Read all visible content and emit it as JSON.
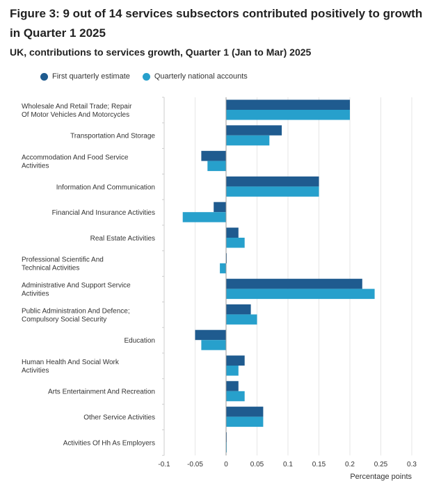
{
  "title": "Figure 3: 9 out of 14 services subsectors contributed positively to growth in Quarter 1 2025",
  "subtitle": "UK, contributions to services growth, Quarter 1 (Jan to Mar) 2025",
  "chart_data": {
    "type": "bar",
    "orientation": "horizontal",
    "categories": [
      "Wholesale And Retail Trade; Repair Of Motor Vehicles And Motorcycles",
      "Transportation And Storage",
      "Accommodation And Food Service Activities",
      "Information And Communication",
      "Financial And Insurance Activities",
      "Real Estate Activities",
      "Professional Scientific And Technical Activities",
      "Administrative And Support Service Activities",
      "Public Administration And Defence; Compulsory Social Security",
      "Education",
      "Human Health And Social Work Activities",
      "Arts Entertainment And Recreation",
      "Other Service Activities",
      "Activities Of Hh As Employers"
    ],
    "series": [
      {
        "name": "First quarterly estimate",
        "color": "#1f5b8f",
        "values": [
          0.2,
          0.09,
          -0.04,
          0.15,
          -0.02,
          0.02,
          0.0,
          0.22,
          0.04,
          -0.05,
          0.03,
          0.02,
          0.06,
          0.0
        ]
      },
      {
        "name": "Quarterly national accounts",
        "color": "#27a0cc",
        "values": [
          0.2,
          0.07,
          -0.03,
          0.15,
          -0.07,
          0.03,
          -0.01,
          0.24,
          0.05,
          -0.04,
          0.02,
          0.03,
          0.06,
          0.0
        ]
      }
    ],
    "xlabel": "Percentage points",
    "xlim": [
      -0.1,
      0.3
    ],
    "xticks": [
      "-0.1",
      "-0.05",
      "0",
      "0.05",
      "0.1",
      "0.15",
      "0.2",
      "0.25",
      "0.3"
    ],
    "grid": true,
    "legend_position": "top-left"
  }
}
